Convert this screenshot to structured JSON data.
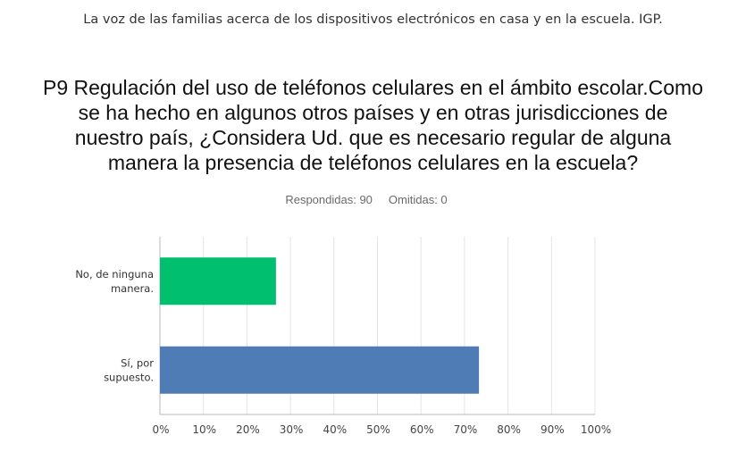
{
  "survey_title": "La voz de las familias acerca de los dispositivos electrónicos en casa y en la escuela. IGP.",
  "question_lines": [
    "P9 Regulación del uso de teléfonos celulares en el ámbito escolar.Como",
    "se ha hecho en algunos otros países y en otras jurisdicciones de",
    "nuestro país, ¿Considera Ud. que es necesario regular de alguna",
    "manera la presencia de teléfonos celulares en la escuela?"
  ],
  "stats": {
    "answered": "Respondidas: 90",
    "skipped": "Omitidas: 0"
  },
  "chart_data": {
    "type": "bar",
    "orientation": "horizontal",
    "categories": [
      [
        "No, de ninguna",
        "manera."
      ],
      [
        "Sí, por",
        "supuesto."
      ]
    ],
    "values": [
      26.67,
      73.33
    ],
    "bar_colors": [
      "#00bf6f",
      "#507cb6"
    ],
    "xlim": [
      0,
      100
    ],
    "x_ticks": [
      "0%",
      "10%",
      "20%",
      "30%",
      "40%",
      "50%",
      "60%",
      "70%",
      "80%",
      "90%",
      "100%"
    ],
    "grid": true
  }
}
